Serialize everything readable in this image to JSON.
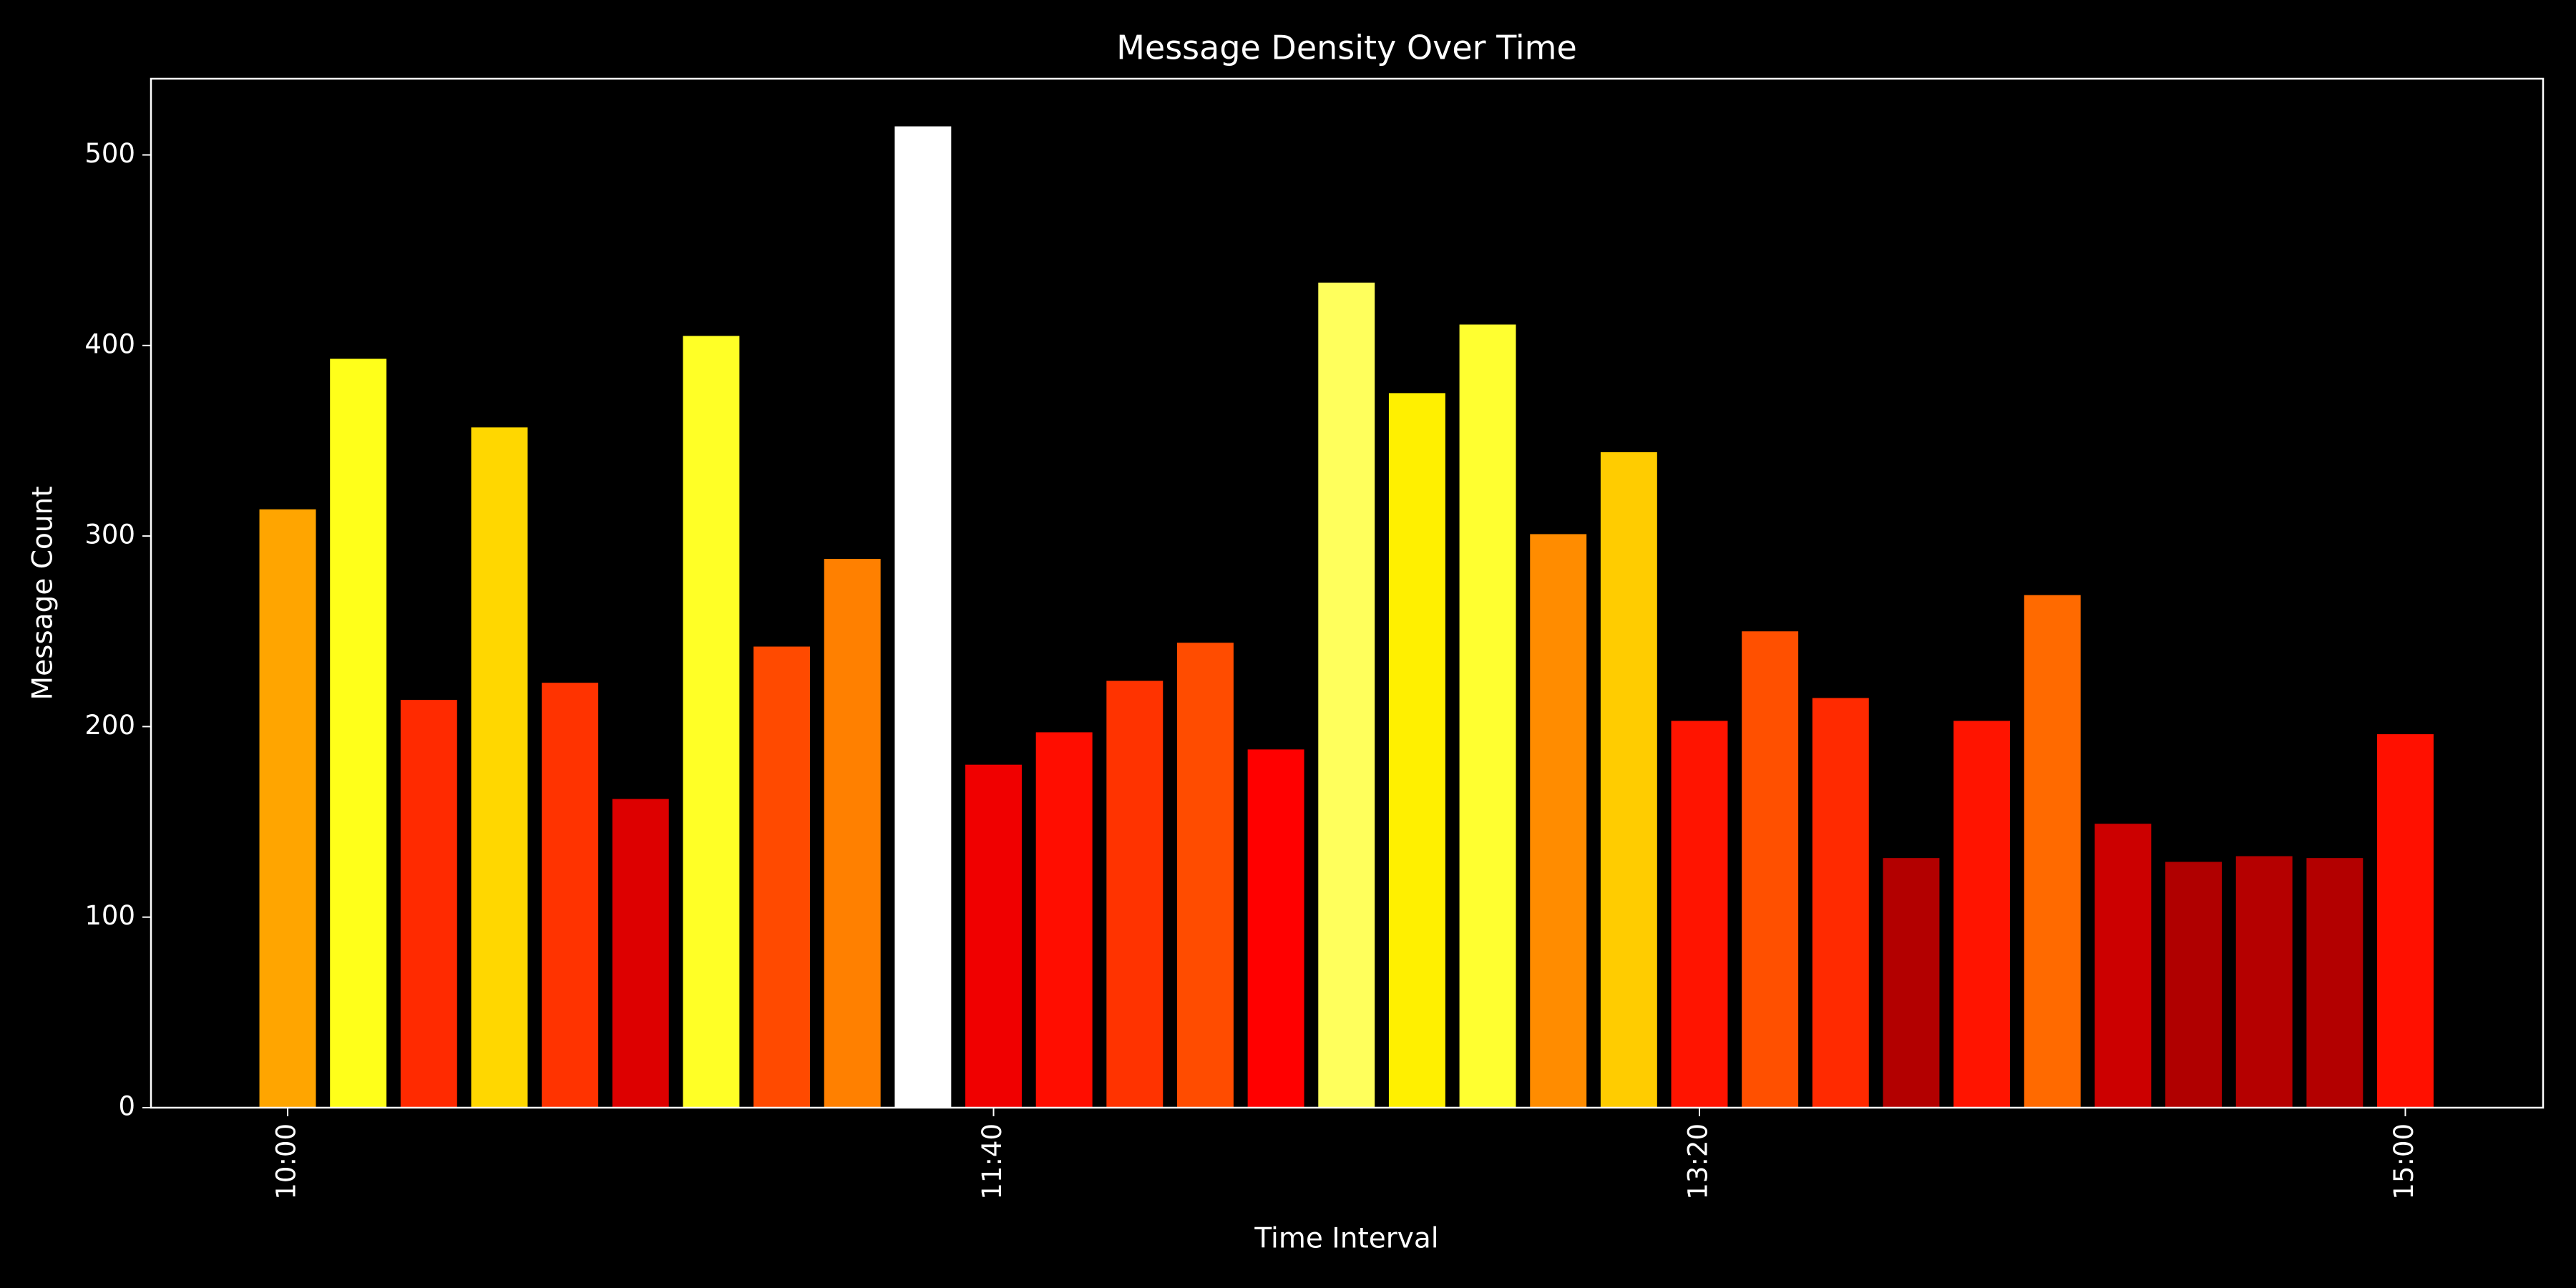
{
  "chart_data": {
    "type": "bar",
    "title": "Message Density Over Time",
    "xlabel": "Time Interval",
    "ylabel": "Message Count",
    "categories": [
      "10:00",
      null,
      null,
      null,
      null,
      null,
      null,
      null,
      null,
      null,
      "11:40",
      null,
      null,
      null,
      null,
      null,
      null,
      null,
      null,
      null,
      "13:20",
      null,
      null,
      null,
      null,
      null,
      null,
      null,
      null,
      null,
      "15:00"
    ],
    "values": [
      314,
      393,
      214,
      357,
      223,
      162,
      405,
      242,
      288,
      515,
      180,
      197,
      224,
      244,
      188,
      433,
      375,
      411,
      301,
      344,
      203,
      250,
      215,
      131,
      203,
      269,
      149,
      129,
      132,
      131,
      196
    ],
    "colors": [
      "#ffa500",
      "#ffff1a",
      "#ff2a00",
      "#ffd700",
      "#ff3300",
      "#dd0000",
      "#ffff26",
      "#ff4a00",
      "#ff8000",
      "#ffffff",
      "#f00000",
      "#ff0d00",
      "#ff3300",
      "#ff4c00",
      "#ff0000",
      "#ffff5c",
      "#fff000",
      "#ffff30",
      "#ff8c00",
      "#ffcc00",
      "#ff1400",
      "#ff5000",
      "#ff2a00",
      "#b30000",
      "#ff1400",
      "#ff6a00",
      "#cc0000",
      "#b00000",
      "#b50000",
      "#b30000",
      "#ff1000"
    ],
    "ylim": [
      0,
      540
    ],
    "yticks": [
      0,
      100,
      200,
      300,
      400,
      500
    ],
    "grid": false
  }
}
